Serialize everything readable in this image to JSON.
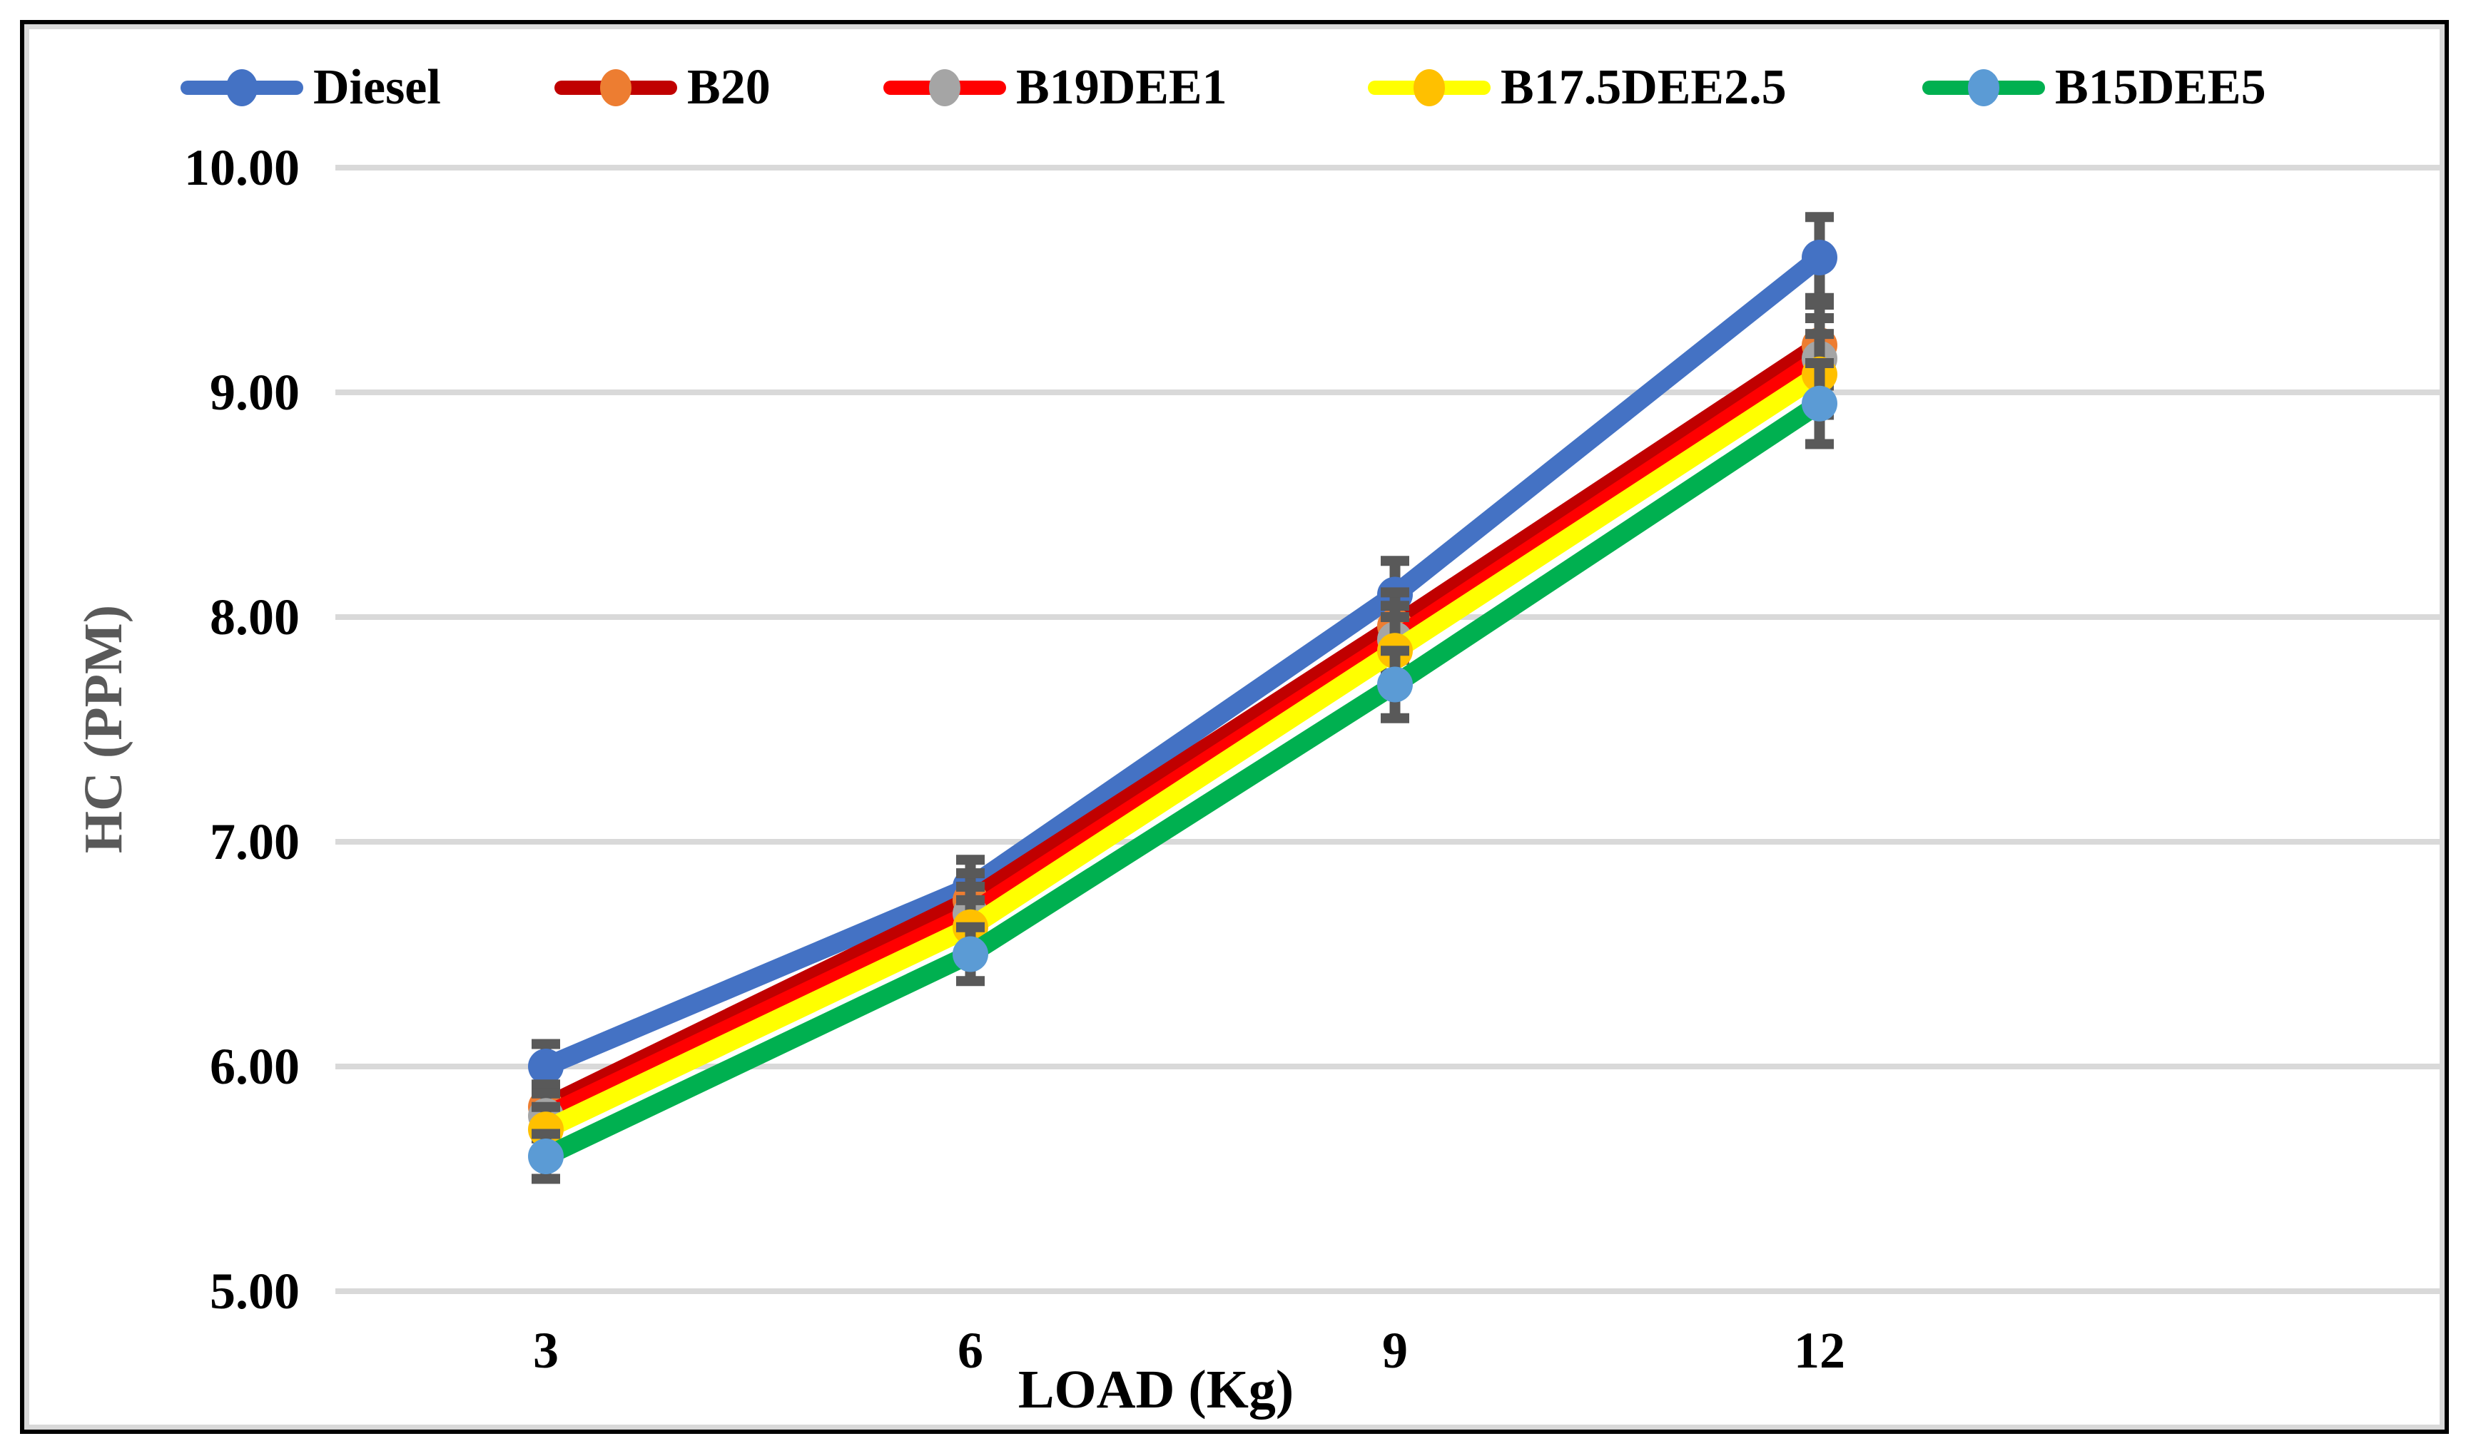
{
  "chart_data": {
    "type": "line",
    "title": "",
    "xlabel": "LOAD (Kg)",
    "ylabel": "HC (PPM)",
    "categories": [
      "3",
      "6",
      "9",
      "12"
    ],
    "y_tick_labels": [
      "10.00",
      "9.00",
      "8.00",
      "7.00",
      "6.00",
      "5.00"
    ],
    "ylim": [
      5.0,
      10.0
    ],
    "y_tick_step": 1.0,
    "grid": true,
    "legend_position": "top",
    "series": [
      {
        "name": "Diesel",
        "line_color": "#4472C4",
        "marker_color": "#4472C4",
        "values": [
          6.0,
          6.8,
          8.1,
          9.6
        ]
      },
      {
        "name": "B20",
        "line_color": "#C00000",
        "marker_color": "#ED7D31",
        "values": [
          5.82,
          6.74,
          7.96,
          9.21
        ]
      },
      {
        "name": "B19DEE1",
        "line_color": "#FF0000",
        "marker_color": "#A5A5A5",
        "values": [
          5.78,
          6.68,
          7.9,
          9.15
        ]
      },
      {
        "name": "B17.5DEE2.5",
        "line_color": "#FFFF00",
        "marker_color": "#FFC000",
        "values": [
          5.72,
          6.62,
          7.85,
          9.08
        ]
      },
      {
        "name": "B15DEE5",
        "line_color": "#00B050",
        "marker_color": "#5B9BD5",
        "values": [
          5.6,
          6.5,
          7.7,
          8.95
        ]
      }
    ],
    "error_bars": {
      "color": "#595959",
      "per_load": [
        0.1,
        0.12,
        0.15,
        0.18
      ]
    },
    "colors": {
      "gridline": "#D9D9D9",
      "outer_border": "#000000",
      "inner_border": "#D9D9D9",
      "tick_text": "#000000",
      "x_title_text": "#000000",
      "y_title_text": "#595959"
    }
  }
}
